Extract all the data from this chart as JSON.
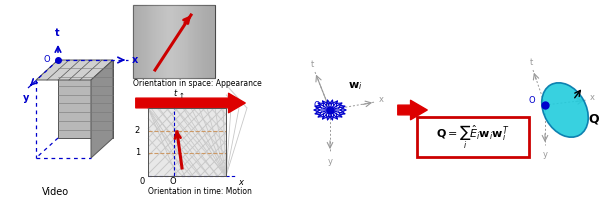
{
  "fig_width": 6.0,
  "fig_height": 2.1,
  "dpi": 100,
  "bg_color": "#ffffff",
  "blue": "#0000cc",
  "blue_dot": "#0000ee",
  "cyan": "#22ccdd",
  "red": "#cc0000",
  "red_arrow": "#dd0000",
  "gray": "#999999",
  "dkgray": "#555555",
  "label_appearance": "Orientation in space: Appearance",
  "label_motion": "Orientation in time: Motion",
  "label_video": "Video"
}
